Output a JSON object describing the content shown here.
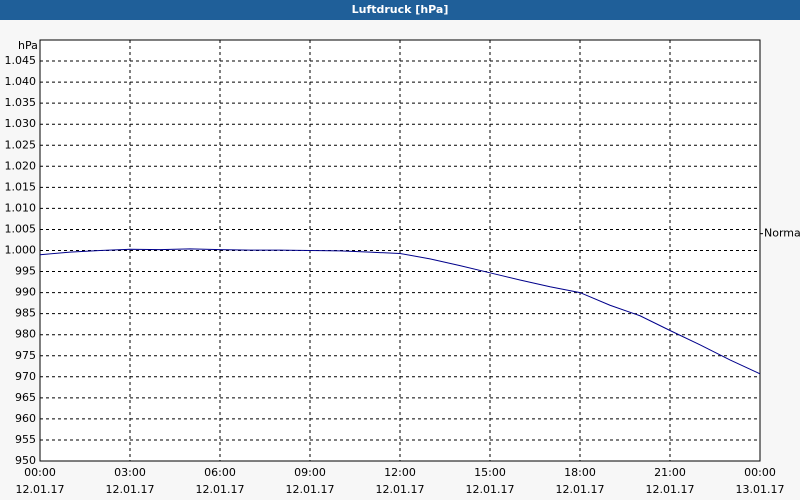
{
  "chart_data": {
    "type": "line",
    "title": "Luftdruck [hPa]",
    "y_label": "hPa",
    "x": [
      0,
      1,
      2,
      3,
      4,
      5,
      6,
      7,
      8,
      9,
      10,
      11,
      12,
      13,
      14,
      15,
      16,
      17,
      18,
      19,
      20,
      21,
      22,
      23,
      24
    ],
    "series": [
      {
        "name": "Luftdruck",
        "color": "#00008b",
        "values": [
          999,
          999.6,
          1000,
          1000.3,
          1000.2,
          1000.4,
          1000.2,
          1000.1,
          1000.1,
          1000,
          999.9,
          999.6,
          999.3,
          998,
          996.4,
          994.7,
          993,
          991.4,
          990,
          987,
          984.5,
          981,
          977.6,
          974,
          970.7
        ]
      }
    ],
    "xlim": [
      0,
      24
    ],
    "xticks": [
      {
        "value": 0,
        "label": "00:00\n12.01.17"
      },
      {
        "value": 3,
        "label": "03:00\n12.01.17"
      },
      {
        "value": 6,
        "label": "06:00\n12.01.17"
      },
      {
        "value": 9,
        "label": "09:00\n12.01.17"
      },
      {
        "value": 12,
        "label": "12:00\n12.01.17"
      },
      {
        "value": 15,
        "label": "15:00\n12.01.17"
      },
      {
        "value": 18,
        "label": "18:00\n12.01.17"
      },
      {
        "value": 21,
        "label": "21:00\n12.01.17"
      },
      {
        "value": 24,
        "label": "00:00\n13.01.17"
      }
    ],
    "ylim": [
      950,
      1050
    ],
    "yticks": [
      950,
      955,
      960,
      965,
      970,
      975,
      980,
      985,
      990,
      995,
      {
        "value": 1000,
        "label": "1.000"
      },
      {
        "value": 1005,
        "label": "1.005"
      },
      {
        "value": 1010,
        "label": "1.010"
      },
      {
        "value": 1015,
        "label": "1.015"
      },
      {
        "value": 1020,
        "label": "1.020"
      },
      {
        "value": 1025,
        "label": "1.025"
      },
      {
        "value": 1030,
        "label": "1.030"
      },
      {
        "value": 1035,
        "label": "1.035"
      },
      {
        "value": 1040,
        "label": "1.040"
      },
      {
        "value": 1045,
        "label": "1.045"
      }
    ],
    "annotation": {
      "text": "Normal",
      "value": 1004
    },
    "grid": true
  }
}
